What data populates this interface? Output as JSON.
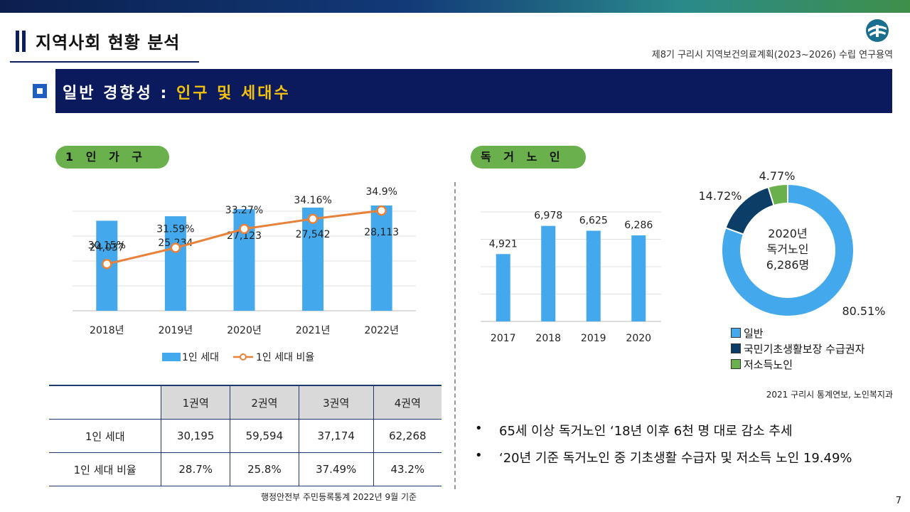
{
  "header": {
    "section_title": "지역사회 현황 분석",
    "report_title": "제8기 구리시 지역보건의료계획(2023~2026) 수립 연구용역",
    "banner_prefix": "일반 경향성 : ",
    "banner_highlight": "인구 및 세대수"
  },
  "colors": {
    "navy": "#0b1a5c",
    "blue_bar": "#44a8ec",
    "orange_line": "#e8823a",
    "green_pill": "#6ab04c"
  },
  "left": {
    "pill": "1 인 가 구",
    "source": "행정안전부 주민등록통계 2022년 9월 기준",
    "table": {
      "headers": [
        "",
        "1권역",
        "2권역",
        "3권역",
        "4권역"
      ],
      "rows": [
        {
          "label": "1인 세대",
          "values": [
            "30,195",
            "59,594",
            "37,174",
            "62,268"
          ]
        },
        {
          "label": "1인 세대 비율",
          "values": [
            "28.7%",
            "25.8%",
            "37.49%",
            "43.2%"
          ]
        }
      ]
    }
  },
  "right": {
    "pill": "독 거 노 인",
    "source": "2021 구리시 통계연보, 노인복지과",
    "bullets": [
      "65세 이상 독거노인 ‘18년 이후 6천 명 대로 감소 추세",
      "‘20년 기준 독거노인 중 기초생활 수급자 및 저소득 노인 19.49%"
    ]
  },
  "page_number": "7",
  "chart_data": [
    {
      "type": "bar",
      "categories": [
        "2018년",
        "2019년",
        "2020년",
        "2021년",
        "2022년"
      ],
      "series": [
        {
          "name": "1인 세대",
          "values": [
            24037,
            25234,
            27123,
            27542,
            28113
          ],
          "labels": [
            "24,037",
            "25,234",
            "27,123",
            "27,542",
            "28,113"
          ],
          "color": "#44a8ec"
        },
        {
          "name": "1인 세대 비율",
          "kind": "line",
          "values": [
            30.15,
            31.59,
            33.27,
            34.16,
            34.9
          ],
          "labels": [
            "30.15%",
            "31.59%",
            "33.27%",
            "34.16%",
            "34.9%"
          ],
          "color": "#e8823a"
        }
      ],
      "legend": "bottom"
    },
    {
      "type": "bar",
      "categories": [
        "2017",
        "2018",
        "2019",
        "2020"
      ],
      "values": [
        4921,
        6978,
        6625,
        6286
      ],
      "labels": [
        "4,921",
        "6,978",
        "6,625",
        "6,286"
      ],
      "ylim": [
        0,
        8000
      ],
      "color": "#44a8ec"
    },
    {
      "type": "pie",
      "center_lines": [
        "2020년",
        "독거노인",
        "6,286명"
      ],
      "slices": [
        {
          "name": "일반",
          "value": 80.51,
          "label": "80.51%",
          "color": "#44a8ec"
        },
        {
          "name": "국민기초생활보장 수급권자",
          "value": 14.72,
          "label": "14.72%",
          "color": "#0b3d66"
        },
        {
          "name": "저소득노인",
          "value": 4.77,
          "label": "4.77%",
          "color": "#6ab04c"
        }
      ],
      "legend": "bottom"
    }
  ]
}
